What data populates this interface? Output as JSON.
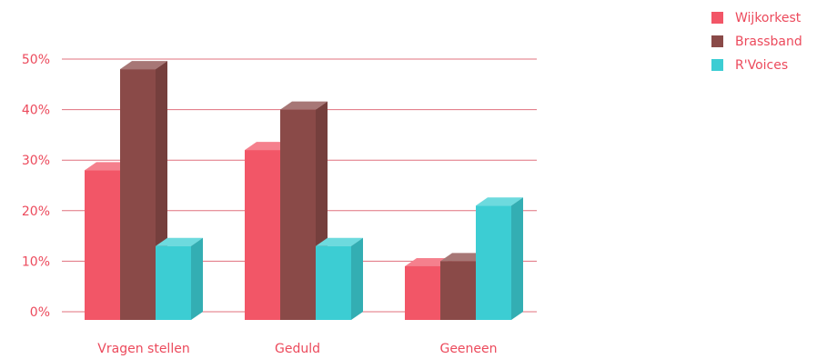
{
  "chart_data": {
    "type": "bar",
    "categories": [
      "Vragen stellen",
      "Geduld",
      "Geeneen"
    ],
    "series": [
      {
        "name": "Wijkorkest",
        "color": "#f25667",
        "values": [
          28,
          32,
          9
        ]
      },
      {
        "name": "Brassband",
        "color": "#8a4a48",
        "values": [
          48,
          40,
          10
        ]
      },
      {
        "name": "R'Voices",
        "color": "#3ccdd3",
        "values": [
          13,
          13,
          21
        ]
      }
    ],
    "y_ticks": [
      "0%",
      "10%",
      "20%",
      "30%",
      "40%",
      "50%"
    ],
    "ylim": [
      0,
      50
    ],
    "grid": true,
    "legend_position": "top-right",
    "gridline_color": "#e0707e",
    "text_color": "#ec4a5c"
  }
}
